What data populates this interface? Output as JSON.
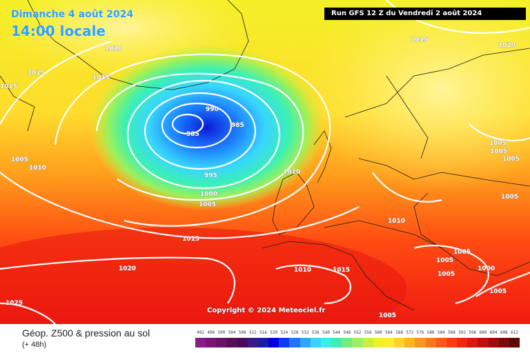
{
  "header": {
    "date": "Dimanche 4 août 2024",
    "time": "14:00 locale",
    "run": "Run GFS 12 Z du Vendredi 2 août 2024"
  },
  "map": {
    "copyright": "Copyright © 2024 Meteociel.fr",
    "low_center": {
      "label": "985",
      "color": "#0a1bd6"
    },
    "isobar_labels": [
      {
        "text": "1020"
      },
      {
        "text": "1015"
      },
      {
        "text": "1015"
      },
      {
        "text": "1015"
      },
      {
        "text": "1005"
      },
      {
        "text": "1010"
      },
      {
        "text": "990"
      },
      {
        "text": "985"
      },
      {
        "text": "985"
      },
      {
        "text": "995"
      },
      {
        "text": "1000"
      },
      {
        "text": "1005"
      },
      {
        "text": "1010"
      },
      {
        "text": "1015"
      },
      {
        "text": "1020"
      },
      {
        "text": "1025"
      },
      {
        "text": "1015"
      },
      {
        "text": "1020"
      },
      {
        "text": "1005"
      },
      {
        "text": "1005"
      },
      {
        "text": "1005"
      },
      {
        "text": "1010"
      },
      {
        "text": "1005"
      },
      {
        "text": "1005"
      },
      {
        "text": "1005"
      },
      {
        "text": "1000"
      },
      {
        "text": "1005"
      },
      {
        "text": "1010"
      },
      {
        "text": "1015"
      },
      {
        "text": "1005"
      }
    ]
  },
  "footer": {
    "title": "Géop. Z500 & pression au sol",
    "subtitle": "(+ 48h)"
  },
  "legend": {
    "values": [
      "492",
      "496",
      "500",
      "504",
      "508",
      "512",
      "516",
      "520",
      "524",
      "528",
      "532",
      "536",
      "540",
      "544",
      "548",
      "552",
      "556",
      "560",
      "564",
      "568",
      "572",
      "576",
      "580",
      "584",
      "588",
      "592",
      "596",
      "600",
      "604",
      "608",
      "612"
    ],
    "colors": [
      "#8a1b8a",
      "#7a167a",
      "#6a126a",
      "#5a0e5a",
      "#4a0a5a",
      "#3a1a8a",
      "#1a1ab0",
      "#0000d8",
      "#0a3cf0",
      "#1a78ff",
      "#2aaaff",
      "#38d6ff",
      "#38f0e6",
      "#3cf0b4",
      "#6cf07a",
      "#9cf05a",
      "#c8f03c",
      "#eef028",
      "#ffee30",
      "#ffd22a",
      "#ffb420",
      "#ff9618",
      "#ff7814",
      "#ff5a12",
      "#ff3c10",
      "#ee2810",
      "#d81a10",
      "#c0100e",
      "#a00a0a",
      "#800808",
      "#600404"
    ]
  }
}
